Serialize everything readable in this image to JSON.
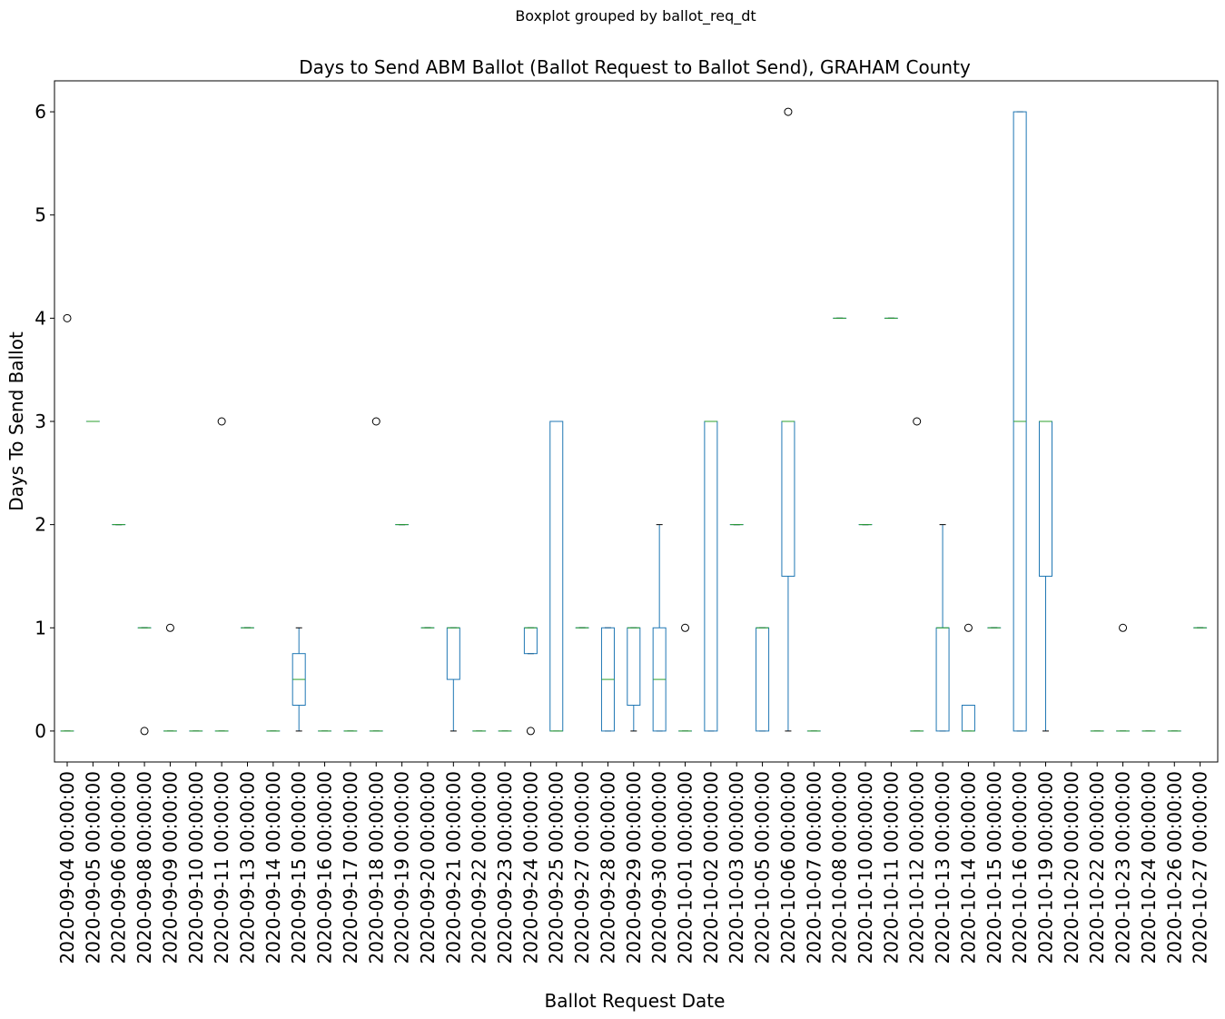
{
  "suptitle": "Boxplot grouped by ballot_req_dt",
  "chart_data": {
    "type": "box",
    "title": "Days to Send ABM Ballot (Ballot Request to Ballot Send), GRAHAM County",
    "xlabel": "Ballot Request Date",
    "ylabel": "Days To Send Ballot",
    "ylim": [
      -0.3,
      6.3
    ],
    "yticks": [
      0,
      1,
      2,
      3,
      4,
      5,
      6
    ],
    "grid": false,
    "colors": {
      "box": "#1f77b4",
      "median": "#2ca02c",
      "cap": "#000000",
      "flier": "#000000"
    },
    "categories": [
      "2020-09-04 00:00:00",
      "2020-09-05 00:00:00",
      "2020-09-06 00:00:00",
      "2020-09-08 00:00:00",
      "2020-09-09 00:00:00",
      "2020-09-10 00:00:00",
      "2020-09-11 00:00:00",
      "2020-09-13 00:00:00",
      "2020-09-14 00:00:00",
      "2020-09-15 00:00:00",
      "2020-09-16 00:00:00",
      "2020-09-17 00:00:00",
      "2020-09-18 00:00:00",
      "2020-09-19 00:00:00",
      "2020-09-20 00:00:00",
      "2020-09-21 00:00:00",
      "2020-09-22 00:00:00",
      "2020-09-23 00:00:00",
      "2020-09-24 00:00:00",
      "2020-09-25 00:00:00",
      "2020-09-27 00:00:00",
      "2020-09-28 00:00:00",
      "2020-09-29 00:00:00",
      "2020-09-30 00:00:00",
      "2020-10-01 00:00:00",
      "2020-10-02 00:00:00",
      "2020-10-03 00:00:00",
      "2020-10-05 00:00:00",
      "2020-10-06 00:00:00",
      "2020-10-07 00:00:00",
      "2020-10-08 00:00:00",
      "2020-10-10 00:00:00",
      "2020-10-11 00:00:00",
      "2020-10-12 00:00:00",
      "2020-10-13 00:00:00",
      "2020-10-14 00:00:00",
      "2020-10-15 00:00:00",
      "2020-10-16 00:00:00",
      "2020-10-19 00:00:00",
      "2020-10-20 00:00:00",
      "2020-10-22 00:00:00",
      "2020-10-23 00:00:00",
      "2020-10-24 00:00:00",
      "2020-10-26 00:00:00",
      "2020-10-27 00:00:00"
    ],
    "boxes": [
      {
        "whislo": 0,
        "q1": 0,
        "med": 0,
        "q3": 0,
        "whishi": 0,
        "fliers": [
          4
        ]
      },
      {
        "whislo": 3,
        "q1": 3,
        "med": 3,
        "q3": 3,
        "whishi": 3,
        "fliers": []
      },
      {
        "whislo": 2,
        "q1": 2,
        "med": 2,
        "q3": 2,
        "whishi": 2,
        "fliers": []
      },
      {
        "whislo": 1,
        "q1": 1,
        "med": 1,
        "q3": 1,
        "whishi": 1,
        "fliers": [
          0
        ]
      },
      {
        "whislo": 0,
        "q1": 0,
        "med": 0,
        "q3": 0,
        "whishi": 0,
        "fliers": [
          1
        ]
      },
      {
        "whislo": 0,
        "q1": 0,
        "med": 0,
        "q3": 0,
        "whishi": 0,
        "fliers": []
      },
      {
        "whislo": 0,
        "q1": 0,
        "med": 0,
        "q3": 0,
        "whishi": 0,
        "fliers": [
          3
        ]
      },
      {
        "whislo": 1,
        "q1": 1,
        "med": 1,
        "q3": 1,
        "whishi": 1,
        "fliers": []
      },
      {
        "whislo": 0,
        "q1": 0,
        "med": 0,
        "q3": 0,
        "whishi": 0,
        "fliers": []
      },
      {
        "whislo": 0,
        "q1": 0.25,
        "med": 0.5,
        "q3": 0.75,
        "whishi": 1,
        "fliers": []
      },
      {
        "whislo": 0,
        "q1": 0,
        "med": 0,
        "q3": 0,
        "whishi": 0,
        "fliers": []
      },
      {
        "whislo": 0,
        "q1": 0,
        "med": 0,
        "q3": 0,
        "whishi": 0,
        "fliers": []
      },
      {
        "whislo": 0,
        "q1": 0,
        "med": 0,
        "q3": 0,
        "whishi": 0,
        "fliers": [
          3
        ]
      },
      {
        "whislo": 2,
        "q1": 2,
        "med": 2,
        "q3": 2,
        "whishi": 2,
        "fliers": []
      },
      {
        "whislo": 1,
        "q1": 1,
        "med": 1,
        "q3": 1,
        "whishi": 1,
        "fliers": []
      },
      {
        "whislo": 0,
        "q1": 0.5,
        "med": 1,
        "q3": 1,
        "whishi": 1,
        "fliers": []
      },
      {
        "whislo": 0,
        "q1": 0,
        "med": 0,
        "q3": 0,
        "whishi": 0,
        "fliers": []
      },
      {
        "whislo": 0,
        "q1": 0,
        "med": 0,
        "q3": 0,
        "whishi": 0,
        "fliers": []
      },
      {
        "whislo": 0.75,
        "q1": 0.75,
        "med": 1,
        "q3": 1,
        "whishi": 1,
        "fliers": [
          0
        ]
      },
      {
        "whislo": 0,
        "q1": 0,
        "med": 0,
        "q3": 3,
        "whishi": 3,
        "fliers": []
      },
      {
        "whislo": 1,
        "q1": 1,
        "med": 1,
        "q3": 1,
        "whishi": 1,
        "fliers": []
      },
      {
        "whislo": 0,
        "q1": 0,
        "med": 0.5,
        "q3": 1,
        "whishi": 1,
        "fliers": []
      },
      {
        "whislo": 0,
        "q1": 0.25,
        "med": 1,
        "q3": 1,
        "whishi": 1,
        "fliers": []
      },
      {
        "whislo": 0,
        "q1": 0,
        "med": 0.5,
        "q3": 1,
        "whishi": 2,
        "fliers": []
      },
      {
        "whislo": 0,
        "q1": 0,
        "med": 0,
        "q3": 0,
        "whishi": 0,
        "fliers": [
          1
        ]
      },
      {
        "whislo": 0,
        "q1": 0,
        "med": 3,
        "q3": 3,
        "whishi": 3,
        "fliers": []
      },
      {
        "whislo": 2,
        "q1": 2,
        "med": 2,
        "q3": 2,
        "whishi": 2,
        "fliers": []
      },
      {
        "whislo": 0,
        "q1": 0,
        "med": 1,
        "q3": 1,
        "whishi": 1,
        "fliers": []
      },
      {
        "whislo": 0,
        "q1": 1.5,
        "med": 3,
        "q3": 3,
        "whishi": 3,
        "fliers": [
          6
        ]
      },
      {
        "whislo": 0,
        "q1": 0,
        "med": 0,
        "q3": 0,
        "whishi": 0,
        "fliers": []
      },
      {
        "whislo": 4,
        "q1": 4,
        "med": 4,
        "q3": 4,
        "whishi": 4,
        "fliers": []
      },
      {
        "whislo": 2,
        "q1": 2,
        "med": 2,
        "q3": 2,
        "whishi": 2,
        "fliers": []
      },
      {
        "whislo": 4,
        "q1": 4,
        "med": 4,
        "q3": 4,
        "whishi": 4,
        "fliers": []
      },
      {
        "whislo": 0,
        "q1": 0,
        "med": 0,
        "q3": 0,
        "whishi": 0,
        "fliers": [
          3
        ]
      },
      {
        "whislo": 0,
        "q1": 0,
        "med": 1,
        "q3": 1,
        "whishi": 2,
        "fliers": []
      },
      {
        "whislo": 0,
        "q1": 0,
        "med": 0,
        "q3": 0.25,
        "whishi": 0.25,
        "fliers": [
          1
        ]
      },
      {
        "whislo": 1,
        "q1": 1,
        "med": 1,
        "q3": 1,
        "whishi": 1,
        "fliers": []
      },
      {
        "whislo": 0,
        "q1": 0,
        "med": 3,
        "q3": 6,
        "whishi": 6,
        "fliers": []
      },
      {
        "whislo": 0,
        "q1": 1.5,
        "med": 3,
        "q3": 3,
        "whishi": 3,
        "fliers": []
      },
      null,
      {
        "whislo": 0,
        "q1": 0,
        "med": 0,
        "q3": 0,
        "whishi": 0,
        "fliers": []
      },
      {
        "whislo": 0,
        "q1": 0,
        "med": 0,
        "q3": 0,
        "whishi": 0,
        "fliers": [
          1
        ]
      },
      {
        "whislo": 0,
        "q1": 0,
        "med": 0,
        "q3": 0,
        "whishi": 0,
        "fliers": []
      },
      {
        "whislo": 0,
        "q1": 0,
        "med": 0,
        "q3": 0,
        "whishi": 0,
        "fliers": []
      },
      {
        "whislo": 1,
        "q1": 1,
        "med": 1,
        "q3": 1,
        "whishi": 1,
        "fliers": []
      }
    ]
  }
}
